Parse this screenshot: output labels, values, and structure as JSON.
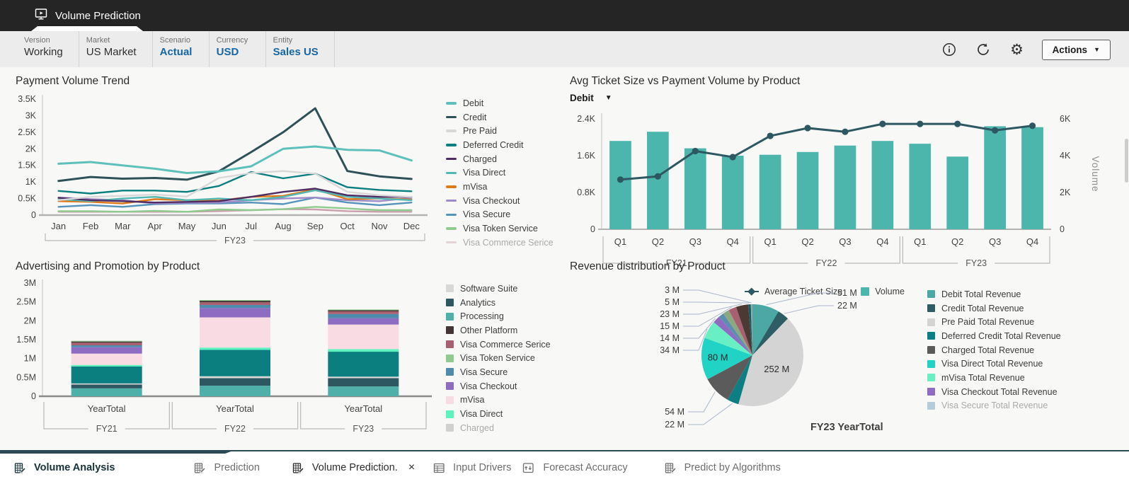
{
  "header": {
    "tab_title": "Volume Prediction"
  },
  "pov": {
    "fields": [
      {
        "label": "Version",
        "value": "Working",
        "highlighted": false
      },
      {
        "label": "Market",
        "value": "US Market",
        "highlighted": false
      },
      {
        "label": "Scenario",
        "value": "Actual",
        "highlighted": true
      },
      {
        "label": "Currency",
        "value": "USD",
        "highlighted": true
      },
      {
        "label": "Entity",
        "value": "Sales US",
        "highlighted": true
      }
    ],
    "actions_label": "Actions"
  },
  "chart_data": [
    {
      "id": "payment_volume_trend",
      "type": "line",
      "title": "Payment Volume Trend",
      "categories": [
        "Jan",
        "Feb",
        "Mar",
        "Apr",
        "May",
        "Jun",
        "Jul",
        "Aug",
        "Sep",
        "Oct",
        "Nov",
        "Dec"
      ],
      "x_group_label": "FY23",
      "ylim": [
        0,
        3500
      ],
      "ytick_labels": [
        "0",
        "0.5K",
        "1K",
        "1.5K",
        "2K",
        "2.5K",
        "3K",
        "3.5K"
      ],
      "series": [
        {
          "name": "Debit",
          "color": "#5EC0BB",
          "values": [
            1550,
            1600,
            1500,
            1400,
            1270,
            1320,
            1470,
            2000,
            2070,
            1970,
            1950,
            1650
          ]
        },
        {
          "name": "Credit",
          "color": "#2E5158",
          "values": [
            1030,
            1150,
            1100,
            1120,
            1070,
            1320,
            1900,
            2500,
            3220,
            1330,
            1170,
            1090
          ]
        },
        {
          "name": "Pre Paid",
          "color": "#D8D8D8",
          "values": [
            450,
            550,
            580,
            620,
            560,
            1120,
            1270,
            1330,
            1250,
            700,
            600,
            550
          ]
        },
        {
          "name": "Deferred Credit",
          "color": "#0B7E80",
          "values": [
            730,
            650,
            740,
            740,
            700,
            880,
            1300,
            1110,
            1250,
            840,
            760,
            720
          ]
        },
        {
          "name": "Charged",
          "color": "#4F2D63",
          "values": [
            520,
            450,
            420,
            380,
            400,
            420,
            550,
            700,
            800,
            600,
            550,
            550
          ]
        },
        {
          "name": "Visa Direct",
          "color": "#53B7B2",
          "values": [
            480,
            420,
            500,
            550,
            450,
            500,
            450,
            550,
            750,
            550,
            500,
            450
          ]
        },
        {
          "name": "mVisa",
          "color": "#DD7B1C",
          "values": [
            420,
            400,
            350,
            480,
            450,
            440,
            550,
            580,
            780,
            480,
            500,
            470
          ]
        },
        {
          "name": "Visa Checkout",
          "color": "#9D8AC9",
          "values": [
            530,
            480,
            450,
            350,
            370,
            380,
            450,
            500,
            530,
            450,
            420,
            520
          ]
        },
        {
          "name": "Visa Secure",
          "color": "#5593BB",
          "values": [
            250,
            300,
            250,
            330,
            350,
            350,
            380,
            330,
            530,
            380,
            300,
            380
          ]
        },
        {
          "name": "Visa Token Service",
          "color": "#8FCA8E",
          "values": [
            120,
            120,
            100,
            130,
            100,
            170,
            150,
            180,
            250,
            200,
            150,
            150
          ]
        },
        {
          "name": "Visa Commerce Serice",
          "color": "#C9A0AC",
          "values": [
            100,
            100,
            100,
            100,
            100,
            120,
            150,
            180,
            170,
            120,
            100,
            100
          ]
        }
      ]
    },
    {
      "id": "avg_ticket_vs_volume",
      "type": "combo",
      "title": "Avg Ticket Size vs Payment Volume by Product",
      "selector_value": "Debit",
      "categories": [
        "Q1",
        "Q2",
        "Q3",
        "Q4",
        "Q1",
        "Q2",
        "Q3",
        "Q4",
        "Q1",
        "Q2",
        "Q3",
        "Q4"
      ],
      "groups": [
        "FY21",
        "FY22",
        "FY23"
      ],
      "left_axis": {
        "ticks": [
          "0",
          "0.8K",
          "1.6K",
          "2.4K"
        ],
        "max": 2400
      },
      "right_axis": {
        "ticks": [
          "0",
          "2K",
          "4K",
          "6K"
        ],
        "max": 6000,
        "label": "Volume"
      },
      "bar_series": {
        "name": "Volume",
        "color": "#4CB5AC",
        "values": [
          4800,
          5300,
          4400,
          4000,
          4050,
          4200,
          4550,
          4800,
          4650,
          3950,
          5600,
          5550
        ]
      },
      "line_series": {
        "name": "Average Ticket Size",
        "color": "#2E5861",
        "values": [
          1080,
          1150,
          1700,
          1570,
          2030,
          2200,
          2120,
          2290,
          2290,
          2290,
          2150,
          2250
        ]
      }
    },
    {
      "id": "advertising_promotion",
      "type": "stacked_bar",
      "title": "Advertising and Promotion by Product",
      "categories": [
        "YearTotal",
        "YearTotal",
        "YearTotal"
      ],
      "groups": [
        "FY21",
        "FY22",
        "FY23"
      ],
      "ylim": [
        0,
        3000000
      ],
      "ytick_labels": [
        "0",
        "0.5M",
        "1M",
        "1.5M",
        "2M",
        "2.5M",
        "3M"
      ],
      "series": [
        {
          "name": "Processing",
          "color": "#4FAFA9",
          "values": [
            210000,
            280000,
            260000
          ]
        },
        {
          "name": "Analytics",
          "color": "#2E5861",
          "values": [
            100000,
            200000,
            220000
          ]
        },
        {
          "name": "Software Suite",
          "color": "#D8D8D8",
          "values": [
            30000,
            50000,
            40000
          ]
        },
        {
          "name": "Charged",
          "color": "#0B7E80",
          "values": [
            450000,
            700000,
            660000
          ]
        },
        {
          "name": "Visa Direct",
          "color": "#5DF2C0",
          "values": [
            40000,
            60000,
            70000
          ]
        },
        {
          "name": "mVisa",
          "color": "#F9DCE3",
          "values": [
            300000,
            800000,
            650000
          ]
        },
        {
          "name": "Visa Checkout",
          "color": "#8D6CC2",
          "values": [
            170000,
            250000,
            170000
          ]
        },
        {
          "name": "Visa Secure",
          "color": "#4E8CAD",
          "values": [
            50000,
            80000,
            110000
          ]
        },
        {
          "name": "Visa Commerce Serice",
          "color": "#A85F70",
          "values": [
            70000,
            70000,
            70000
          ]
        },
        {
          "name": "Other Platform",
          "color": "#433531",
          "values": [
            30000,
            40000,
            30000
          ]
        },
        {
          "name": "Visa Token Service",
          "color": "#8FCA8E",
          "values": [
            20000,
            20000,
            20000
          ]
        }
      ],
      "legend": [
        {
          "label": "Software Suite",
          "color": "#D8D8D8",
          "faded": false
        },
        {
          "label": "Analytics",
          "color": "#2E5861",
          "faded": false
        },
        {
          "label": "Processing",
          "color": "#4FAFA9",
          "faded": false
        },
        {
          "label": "Other Platform",
          "color": "#433531",
          "faded": false
        },
        {
          "label": "Visa Commerce Serice",
          "color": "#A85F70",
          "faded": false
        },
        {
          "label": "Visa Token Service",
          "color": "#8FCA8E",
          "faded": false
        },
        {
          "label": "Visa Secure",
          "color": "#4E8CAD",
          "faded": false
        },
        {
          "label": "Visa Checkout",
          "color": "#8D6CC2",
          "faded": false
        },
        {
          "label": "mVisa",
          "color": "#F9DCE3",
          "faded": false
        },
        {
          "label": "Visa Direct",
          "color": "#5DF2C0",
          "faded": false
        },
        {
          "label": "Charged",
          "color": "#9b9b9b",
          "faded": true
        }
      ]
    },
    {
      "id": "revenue_distribution",
      "type": "pie",
      "title": "Revenue distribution by Product",
      "subtitle": "FY23 YearTotal",
      "slices": [
        {
          "label": "51 M",
          "value": 51,
          "color": "#4BA8A4"
        },
        {
          "label": "22 M",
          "value": 22,
          "color": "#2F5D66"
        },
        {
          "label": "252 M",
          "value": 252,
          "color": "#D4D4D4",
          "inside": true
        },
        {
          "label": "22 M",
          "value": 22,
          "color": "#0E7E85"
        },
        {
          "label": "54 M",
          "value": 54,
          "color": "#5B5B5B"
        },
        {
          "label": "80 M",
          "value": 80,
          "color": "#21D3C4",
          "inside": true
        },
        {
          "label": "34 M",
          "value": 34,
          "color": "#69EFC4"
        },
        {
          "label": "14 M",
          "value": 14,
          "color": "#8D6CC2"
        },
        {
          "label": "",
          "value": 10,
          "color": "#5A8FAE"
        },
        {
          "label": "",
          "value": 12,
          "color": "#8BA881"
        },
        {
          "label": "15 M",
          "value": 15,
          "color": "#A85F70"
        },
        {
          "label": "23 M",
          "value": 23,
          "color": "#4A3A33"
        },
        {
          "label": "5 M",
          "value": 5,
          "color": "#155E63"
        },
        {
          "label": "3 M",
          "value": 3,
          "color": "#9AA5A5"
        }
      ],
      "legend": [
        {
          "label": "Debit Total Revenue",
          "color": "#4BA8A4",
          "faded": false
        },
        {
          "label": "Credit Total Revenue",
          "color": "#2F5D66",
          "faded": false
        },
        {
          "label": "Pre Paid Total Revenue",
          "color": "#D4D4D4",
          "faded": false
        },
        {
          "label": "Deferred Credit Total Revenue",
          "color": "#0E7E85",
          "faded": false
        },
        {
          "label": "Charged Total Revenue",
          "color": "#5B5B5B",
          "faded": false
        },
        {
          "label": "Visa Direct Total Revenue",
          "color": "#21D3C4",
          "faded": false
        },
        {
          "label": "mVisa Total Revenue",
          "color": "#69EFC4",
          "faded": false
        },
        {
          "label": "Visa Checkout Total Revenue",
          "color": "#8D6CC2",
          "faded": false
        },
        {
          "label": "Visa Secure Total Revenue",
          "color": "#5A8FAE",
          "faded": true
        }
      ]
    }
  ],
  "bottom_tabs": [
    {
      "label": "Volume Analysis",
      "icon": "form",
      "active": true,
      "closable": false
    },
    {
      "label": "Prediction",
      "icon": "form",
      "active": false,
      "closable": false
    },
    {
      "label": "Volume Prediction.",
      "icon": "form",
      "active": false,
      "closable": true
    },
    {
      "label": "Input Drivers",
      "icon": "table",
      "active": false,
      "closable": false
    },
    {
      "label": "Forecast Accuracy",
      "icon": "forecast",
      "active": false,
      "closable": false
    },
    {
      "label": "Predict by Algorithms",
      "icon": "form",
      "active": false,
      "closable": false
    }
  ]
}
